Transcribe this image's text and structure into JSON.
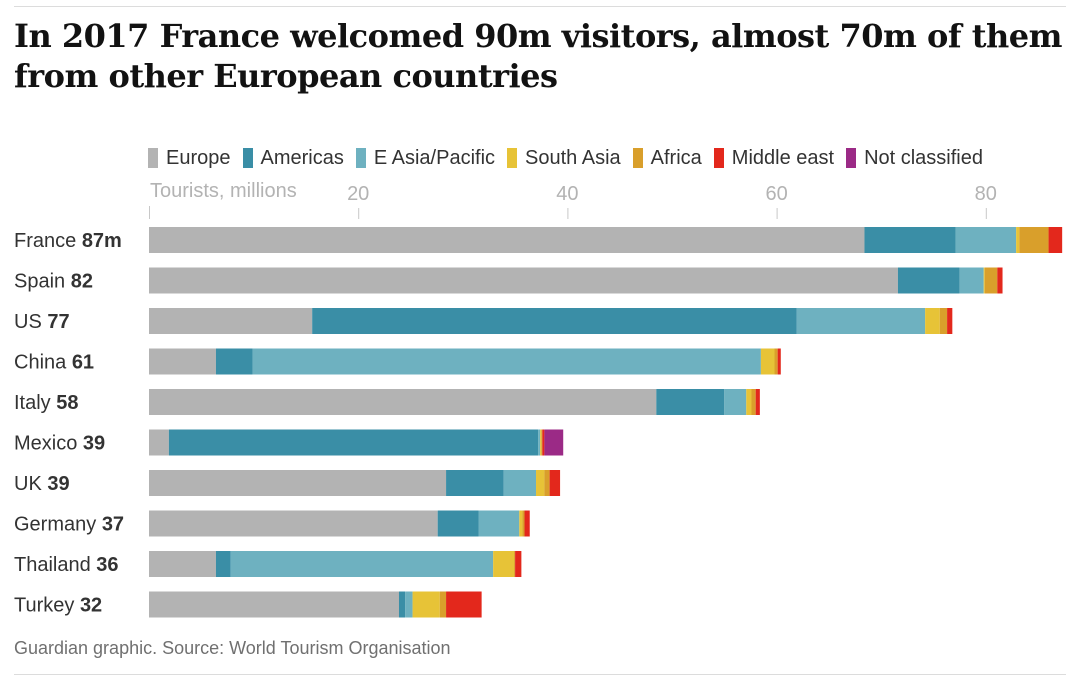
{
  "headline": "In 2017 France welcomed 90m visitors, almost 70m of them from other European countries",
  "source": "Guardian graphic. Source: World Tourism Organisation",
  "colors": {
    "Europe": "#b3b3b3",
    "Americas": "#3a8ea6",
    "E Asia/Pacific": "#6eb1c0",
    "South Asia": "#e7c337",
    "Africa": "#d99f2b",
    "Middle east": "#e3281c",
    "Not classified": "#9b2a86"
  },
  "chart_data": {
    "type": "bar",
    "orientation": "horizontal",
    "stacked": true,
    "title": "In 2017 France welcomed 90m visitors, almost 70m of them from other European countries",
    "xlabel": "Tourists, millions",
    "xlim": [
      0,
      87
    ],
    "xticks": [
      "20",
      "40",
      "60",
      "80"
    ],
    "xtick_values": [
      20,
      40,
      60,
      80
    ],
    "legend_position": "top",
    "legend": [
      "Europe",
      "Americas",
      "E Asia/Pacific",
      "South Asia",
      "Africa",
      "Middle east",
      "Not classified"
    ],
    "categories": [
      {
        "name": "France",
        "total": "87m"
      },
      {
        "name": "Spain",
        "total": "82"
      },
      {
        "name": "US",
        "total": "77"
      },
      {
        "name": "China",
        "total": "61"
      },
      {
        "name": "Italy",
        "total": "58"
      },
      {
        "name": "Mexico",
        "total": "39"
      },
      {
        "name": "UK",
        "total": "39"
      },
      {
        "name": "Germany",
        "total": "37"
      },
      {
        "name": "Thailand",
        "total": "36"
      },
      {
        "name": "Turkey",
        "total": "32"
      }
    ],
    "series": [
      {
        "name": "Europe",
        "values": [
          68.4,
          71.6,
          15.6,
          6.4,
          48.5,
          1.9,
          28.4,
          27.6,
          6.4,
          23.9
        ]
      },
      {
        "name": "Americas",
        "values": [
          8.7,
          5.9,
          46.3,
          3.5,
          6.5,
          35.3,
          5.5,
          3.9,
          1.4,
          0.6
        ]
      },
      {
        "name": "E Asia/Pacific",
        "values": [
          5.8,
          2.3,
          12.3,
          48.6,
          2.1,
          0.2,
          3.1,
          3.9,
          25.1,
          0.7
        ]
      },
      {
        "name": "South Asia",
        "values": [
          0.3,
          0.1,
          1.4,
          1.3,
          0.5,
          0.1,
          0.8,
          0.3,
          2.0,
          2.6
        ]
      },
      {
        "name": "Africa",
        "values": [
          2.8,
          1.2,
          0.7,
          0.3,
          0.4,
          0.1,
          0.5,
          0.2,
          0.1,
          0.6
        ]
      },
      {
        "name": "Middle east",
        "values": [
          1.3,
          0.5,
          0.5,
          0.3,
          0.4,
          0.2,
          1.0,
          0.5,
          0.6,
          3.4
        ]
      },
      {
        "name": "Not classified",
        "values": [
          0,
          0,
          0,
          0,
          0,
          1.8,
          0,
          0,
          0,
          0
        ]
      }
    ]
  }
}
